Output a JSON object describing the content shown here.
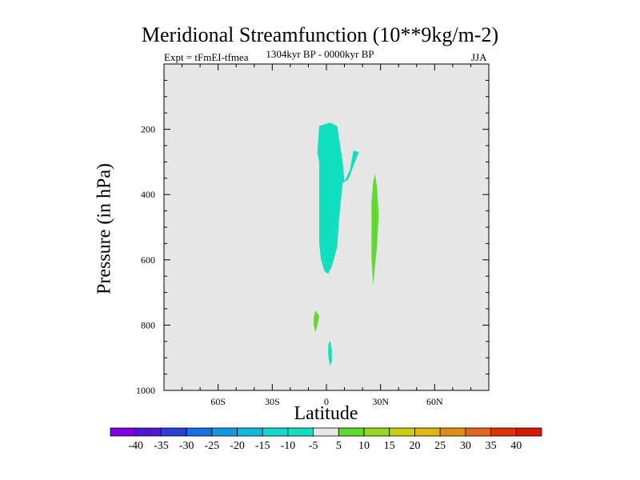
{
  "chart_data": {
    "type": "contour",
    "title": "Meridional Streamfunction (10**9kg/m-2)",
    "subtitle": "1304kyr BP - 0000kyr BP",
    "left_label": "Expt = tFmEI-tfmea",
    "right_label": "JJA",
    "xlabel": "Latitude",
    "ylabel": "Pressure (in hPa)",
    "xlim": [
      -90,
      90
    ],
    "ylim": [
      1000,
      0
    ],
    "x_ticks": [
      {
        "value": -60,
        "label": "60S"
      },
      {
        "value": -30,
        "label": "30S"
      },
      {
        "value": 0,
        "label": "0"
      },
      {
        "value": 30,
        "label": "30N"
      },
      {
        "value": 60,
        "label": "60N"
      }
    ],
    "y_ticks": [
      {
        "value": 200,
        "label": "200"
      },
      {
        "value": 400,
        "label": "400"
      },
      {
        "value": 600,
        "label": "600"
      },
      {
        "value": 800,
        "label": "800"
      },
      {
        "value": 1000,
        "label": "1000"
      }
    ],
    "background_color": "#e6e6e6",
    "regions": [
      {
        "name": "negative-cell-main",
        "level": -5,
        "color": "#10e0c0",
        "points": [
          [
            -4,
            190
          ],
          [
            2,
            180
          ],
          [
            6,
            190
          ],
          [
            9,
            300
          ],
          [
            10,
            360
          ],
          [
            13,
            325
          ],
          [
            15,
            265
          ],
          [
            18,
            270
          ],
          [
            12,
            355
          ],
          [
            9,
            365
          ],
          [
            7,
            475
          ],
          [
            6,
            560
          ],
          [
            3,
            620
          ],
          [
            1,
            643
          ],
          [
            -1,
            635
          ],
          [
            -3,
            600
          ],
          [
            -4,
            550
          ],
          [
            -4,
            400
          ],
          [
            -4,
            300
          ],
          [
            -5,
            270
          ]
        ]
      },
      {
        "name": "positive-cell-upper",
        "level": 5,
        "color": "#60d830",
        "points": [
          [
            27,
            335
          ],
          [
            28,
            380
          ],
          [
            29,
            460
          ],
          [
            28,
            560
          ],
          [
            27,
            615
          ],
          [
            26,
            678
          ],
          [
            25,
            600
          ],
          [
            25,
            500
          ],
          [
            25,
            420
          ],
          [
            26,
            360
          ]
        ]
      },
      {
        "name": "positive-cell-lower",
        "level": 5,
        "color": "#60d830",
        "points": [
          [
            -6,
            755
          ],
          [
            -4,
            772
          ],
          [
            -5,
            800
          ],
          [
            -6,
            822
          ],
          [
            -7,
            800
          ],
          [
            -7,
            775
          ]
        ]
      },
      {
        "name": "negative-cell-lower",
        "level": -5,
        "color": "#10e0c0",
        "points": [
          [
            2,
            847
          ],
          [
            3,
            875
          ],
          [
            3,
            912
          ],
          [
            2,
            925
          ],
          [
            1,
            895
          ],
          [
            1,
            860
          ]
        ]
      }
    ],
    "colorbar": {
      "labels": [
        "-40",
        "-35",
        "-30",
        "-25",
        "-20",
        "-15",
        "-10",
        "-5",
        "5",
        "10",
        "15",
        "20",
        "25",
        "30",
        "35",
        "40"
      ],
      "colors": [
        "#8000e0",
        "#5018d0",
        "#2840d8",
        "#1870e0",
        "#1098e0",
        "#10b8e0",
        "#10d8d0",
        "#10e0c0",
        "#e6e6e6",
        "#60d830",
        "#98d820",
        "#c8d010",
        "#e0b808",
        "#e09010",
        "#e06818",
        "#e03008",
        "#d81800"
      ]
    }
  }
}
